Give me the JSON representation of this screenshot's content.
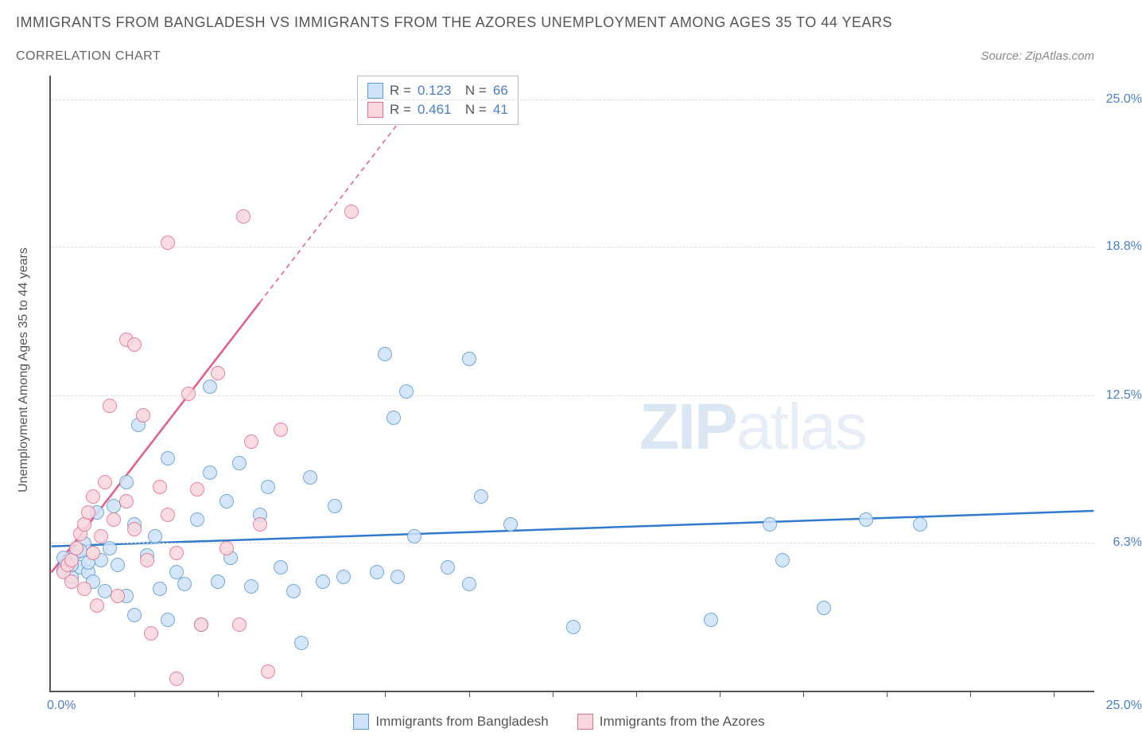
{
  "title": "IMMIGRANTS FROM BANGLADESH VS IMMIGRANTS FROM THE AZORES UNEMPLOYMENT AMONG AGES 35 TO 44 YEARS",
  "subtitle": "CORRELATION CHART",
  "source": "Source: ZipAtlas.com",
  "yaxis_label": "Unemployment Among Ages 35 to 44 years",
  "xaxis_min_label": "0.0%",
  "xaxis_max_label": "25.0%",
  "watermark_bold": "ZIP",
  "watermark_light": "atlas",
  "chart": {
    "type": "scatter",
    "xlim": [
      0,
      25
    ],
    "ylim": [
      0,
      26
    ],
    "yticks": [
      {
        "v": 6.3,
        "label": "6.3%"
      },
      {
        "v": 12.5,
        "label": "12.5%"
      },
      {
        "v": 18.8,
        "label": "18.8%"
      },
      {
        "v": 25.0,
        "label": "25.0%"
      }
    ],
    "xticks_minor": [
      2,
      4,
      6,
      8,
      10,
      12,
      14,
      16,
      18,
      20,
      22,
      24
    ],
    "grid_color": "#dddddd",
    "axis_color": "#555555",
    "background_color": "#ffffff",
    "marker_radius": 9,
    "series": [
      {
        "name": "Immigrants from Bangladesh",
        "fill": "#cfe2f9",
        "stroke": "#5a9bd5",
        "R": "0.123",
        "N": "66",
        "trend": {
          "x1": 0,
          "y1": 6.1,
          "x2": 25,
          "y2": 7.6,
          "color": "#2f79d1",
          "width": 2.5
        },
        "points": [
          [
            0.3,
            5.1
          ],
          [
            0.4,
            5.4
          ],
          [
            0.5,
            4.8
          ],
          [
            0.6,
            5.8
          ],
          [
            0.7,
            5.2
          ],
          [
            0.8,
            6.2
          ],
          [
            0.9,
            5.0
          ],
          [
            1.0,
            4.6
          ],
          [
            1.1,
            7.5
          ],
          [
            1.2,
            5.5
          ],
          [
            1.3,
            4.2
          ],
          [
            1.4,
            6.0
          ],
          [
            1.5,
            7.8
          ],
          [
            1.6,
            5.3
          ],
          [
            1.8,
            4.0
          ],
          [
            1.8,
            8.8
          ],
          [
            2.0,
            7.0
          ],
          [
            2.0,
            3.2
          ],
          [
            2.1,
            11.2
          ],
          [
            2.3,
            5.7
          ],
          [
            2.5,
            6.5
          ],
          [
            2.6,
            4.3
          ],
          [
            2.8,
            9.8
          ],
          [
            2.8,
            3.0
          ],
          [
            3.0,
            5.0
          ],
          [
            3.2,
            4.5
          ],
          [
            3.5,
            7.2
          ],
          [
            3.6,
            2.8
          ],
          [
            3.8,
            9.2
          ],
          [
            3.8,
            12.8
          ],
          [
            4.0,
            4.6
          ],
          [
            4.2,
            8.0
          ],
          [
            4.3,
            5.6
          ],
          [
            4.5,
            9.6
          ],
          [
            4.8,
            4.4
          ],
          [
            5.0,
            7.4
          ],
          [
            5.2,
            8.6
          ],
          [
            5.5,
            5.2
          ],
          [
            5.8,
            4.2
          ],
          [
            6.0,
            2.0
          ],
          [
            6.2,
            9.0
          ],
          [
            6.5,
            4.6
          ],
          [
            6.8,
            7.8
          ],
          [
            7.0,
            4.8
          ],
          [
            7.8,
            5.0
          ],
          [
            8.0,
            14.2
          ],
          [
            8.2,
            11.5
          ],
          [
            8.3,
            4.8
          ],
          [
            8.5,
            12.6
          ],
          [
            8.7,
            6.5
          ],
          [
            9.5,
            5.2
          ],
          [
            10.0,
            14.0
          ],
          [
            10.0,
            4.5
          ],
          [
            10.3,
            8.2
          ],
          [
            11.0,
            7.0
          ],
          [
            12.5,
            2.7
          ],
          [
            17.5,
            5.5
          ],
          [
            17.2,
            7.0
          ],
          [
            18.5,
            3.5
          ],
          [
            15.8,
            3.0
          ],
          [
            19.5,
            7.2
          ],
          [
            20.8,
            7.0
          ],
          [
            0.3,
            5.6
          ],
          [
            0.5,
            5.3
          ],
          [
            0.7,
            5.9
          ],
          [
            0.9,
            5.4
          ]
        ]
      },
      {
        "name": "Immigrants from the Azores",
        "fill": "#f9d7de",
        "stroke": "#e36e8c",
        "R": "0.461",
        "N": "41",
        "trend": {
          "x1": 0,
          "y1": 5.0,
          "x2": 9.2,
          "y2": 26.0,
          "solid_to_x": 5.0,
          "color": "#e65a87",
          "width": 2.5
        },
        "points": [
          [
            0.3,
            5.0
          ],
          [
            0.4,
            5.3
          ],
          [
            0.5,
            4.6
          ],
          [
            0.5,
            5.5
          ],
          [
            0.6,
            6.0
          ],
          [
            0.7,
            6.6
          ],
          [
            0.8,
            7.0
          ],
          [
            0.8,
            4.3
          ],
          [
            0.9,
            7.5
          ],
          [
            1.0,
            8.2
          ],
          [
            1.0,
            5.8
          ],
          [
            1.1,
            3.6
          ],
          [
            1.2,
            6.5
          ],
          [
            1.3,
            8.8
          ],
          [
            1.4,
            12.0
          ],
          [
            1.5,
            7.2
          ],
          [
            1.6,
            4.0
          ],
          [
            1.8,
            8.0
          ],
          [
            1.8,
            14.8
          ],
          [
            2.0,
            6.8
          ],
          [
            2.0,
            14.6
          ],
          [
            2.2,
            11.6
          ],
          [
            2.3,
            5.5
          ],
          [
            2.4,
            2.4
          ],
          [
            2.6,
            8.6
          ],
          [
            2.8,
            7.4
          ],
          [
            2.8,
            18.9
          ],
          [
            3.0,
            5.8
          ],
          [
            3.0,
            0.5
          ],
          [
            3.3,
            12.5
          ],
          [
            3.5,
            8.5
          ],
          [
            3.6,
            2.8
          ],
          [
            4.0,
            13.4
          ],
          [
            4.2,
            6.0
          ],
          [
            4.5,
            2.8
          ],
          [
            4.6,
            20.0
          ],
          [
            4.8,
            10.5
          ],
          [
            5.0,
            7.0
          ],
          [
            5.2,
            0.8
          ],
          [
            5.5,
            11.0
          ],
          [
            7.2,
            20.2
          ]
        ]
      }
    ]
  },
  "legend_bottom": [
    {
      "swatch_fill": "#cfe2f9",
      "swatch_stroke": "#5a9bd5",
      "label": "Immigrants from Bangladesh"
    },
    {
      "swatch_fill": "#f9d7de",
      "swatch_stroke": "#e36e8c",
      "label": "Immigrants from the Azores"
    }
  ]
}
